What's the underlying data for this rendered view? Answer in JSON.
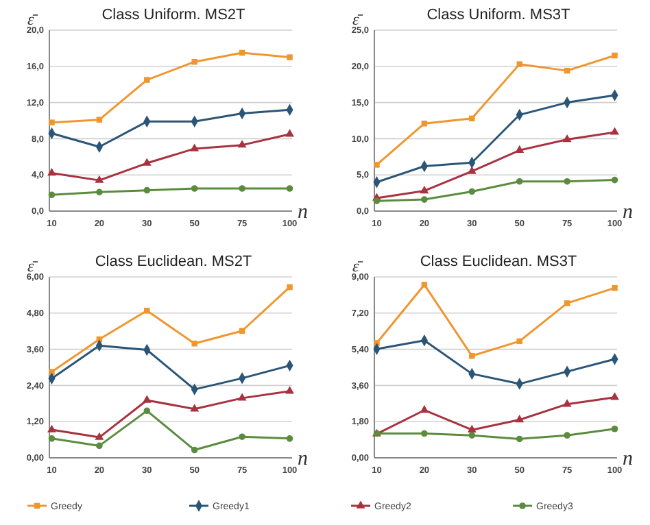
{
  "chart_data": [
    {
      "type": "line",
      "title": "Class Uniform. MS2T",
      "xlabel": "n",
      "ylabel": "ε̄",
      "categories": [
        "10",
        "20",
        "30",
        "50",
        "75",
        "100"
      ],
      "ylim": [
        0,
        20
      ],
      "yticks": [
        {
          "value": 0,
          "label": "0,0"
        },
        {
          "value": 4,
          "label": "4,0"
        },
        {
          "value": 8,
          "label": "8,0"
        },
        {
          "value": 12,
          "label": "12,0"
        },
        {
          "value": 16,
          "label": "16,0"
        },
        {
          "value": 20,
          "label": "20,0"
        }
      ],
      "grid": "y",
      "legend": "bottom",
      "series": [
        {
          "name": "Greedy",
          "color": "#f0962e",
          "marker": "square",
          "values": [
            9.8,
            10.1,
            14.5,
            16.5,
            17.5,
            17.0
          ]
        },
        {
          "name": "Greedy1",
          "color": "#2b5577",
          "marker": "diamond",
          "values": [
            8.6,
            7.1,
            9.9,
            9.9,
            10.8,
            11.2
          ]
        },
        {
          "name": "Greedy2",
          "color": "#a83240",
          "marker": "triangle",
          "values": [
            4.2,
            3.4,
            5.3,
            6.9,
            7.3,
            8.5
          ]
        },
        {
          "name": "Greedy3",
          "color": "#5b8c3e",
          "marker": "circle",
          "values": [
            1.8,
            2.1,
            2.3,
            2.5,
            2.5,
            2.5
          ]
        }
      ]
    },
    {
      "type": "line",
      "title": "Class Uniform. MS3T",
      "xlabel": "n",
      "ylabel": "ε̄",
      "categories": [
        "10",
        "20",
        "30",
        "50",
        "75",
        "100"
      ],
      "ylim": [
        0,
        25
      ],
      "yticks": [
        {
          "value": 0,
          "label": "0,0"
        },
        {
          "value": 5,
          "label": "5,0"
        },
        {
          "value": 10,
          "label": "10,0"
        },
        {
          "value": 15,
          "label": "15,0"
        },
        {
          "value": 20,
          "label": "20,0"
        },
        {
          "value": 25,
          "label": "25,0"
        }
      ],
      "grid": "y",
      "series": [
        {
          "color": "#f0962e",
          "marker": "square",
          "values": [
            6.4,
            12.1,
            12.8,
            20.3,
            19.4,
            21.5
          ]
        },
        {
          "color": "#2b5577",
          "marker": "diamond",
          "values": [
            4.0,
            6.2,
            6.7,
            13.3,
            15.0,
            16.0
          ]
        },
        {
          "color": "#a83240",
          "marker": "triangle",
          "values": [
            1.8,
            2.8,
            5.5,
            8.4,
            9.9,
            10.9
          ]
        },
        {
          "color": "#5b8c3e",
          "marker": "circle",
          "values": [
            1.4,
            1.6,
            2.7,
            4.1,
            4.1,
            4.3
          ]
        }
      ]
    },
    {
      "type": "line",
      "title": "Class Euclidean. MS2T",
      "xlabel": "n",
      "ylabel": "ε̄",
      "categories": [
        "10",
        "20",
        "30",
        "50",
        "75",
        "100"
      ],
      "ylim": [
        0,
        6
      ],
      "yticks": [
        {
          "value": 0,
          "label": "0,00"
        },
        {
          "value": 1.2,
          "label": "1,20"
        },
        {
          "value": 2.4,
          "label": "2,40"
        },
        {
          "value": 3.6,
          "label": "3,60"
        },
        {
          "value": 4.8,
          "label": "4,80"
        },
        {
          "value": 6,
          "label": "6,00"
        }
      ],
      "grid": "y",
      "series": [
        {
          "color": "#f0962e",
          "marker": "square",
          "values": [
            2.85,
            3.93,
            4.88,
            3.79,
            4.21,
            5.66
          ]
        },
        {
          "color": "#2b5577",
          "marker": "diamond",
          "values": [
            2.63,
            3.72,
            3.58,
            2.27,
            2.64,
            3.06
          ]
        },
        {
          "color": "#a83240",
          "marker": "triangle",
          "values": [
            0.93,
            0.68,
            1.91,
            1.62,
            1.98,
            2.21
          ]
        },
        {
          "color": "#5b8c3e",
          "marker": "circle",
          "values": [
            0.64,
            0.4,
            1.56,
            0.26,
            0.7,
            0.64
          ]
        }
      ]
    },
    {
      "type": "line",
      "title": "Class Euclidean. MS3T",
      "xlabel": "n",
      "ylabel": "ε̄",
      "categories": [
        "10",
        "20",
        "30",
        "50",
        "75",
        "100"
      ],
      "ylim": [
        0,
        9
      ],
      "yticks": [
        {
          "value": 0,
          "label": "0,00"
        },
        {
          "value": 1.8,
          "label": "1,80"
        },
        {
          "value": 3.6,
          "label": "3,60"
        },
        {
          "value": 5.4,
          "label": "5,40"
        },
        {
          "value": 7.2,
          "label": "7,20"
        },
        {
          "value": 9,
          "label": "9,00"
        }
      ],
      "grid": "y",
      "series": [
        {
          "color": "#f0962e",
          "marker": "square",
          "values": [
            5.71,
            8.61,
            5.07,
            5.8,
            7.69,
            8.45
          ]
        },
        {
          "color": "#2b5577",
          "marker": "diamond",
          "values": [
            5.41,
            5.84,
            4.18,
            3.68,
            4.29,
            4.91
          ]
        },
        {
          "color": "#a83240",
          "marker": "triangle",
          "values": [
            1.19,
            2.37,
            1.39,
            1.89,
            2.67,
            3.01
          ]
        },
        {
          "color": "#5b8c3e",
          "marker": "circle",
          "values": [
            1.21,
            1.21,
            1.12,
            0.94,
            1.12,
            1.44
          ]
        }
      ]
    }
  ]
}
